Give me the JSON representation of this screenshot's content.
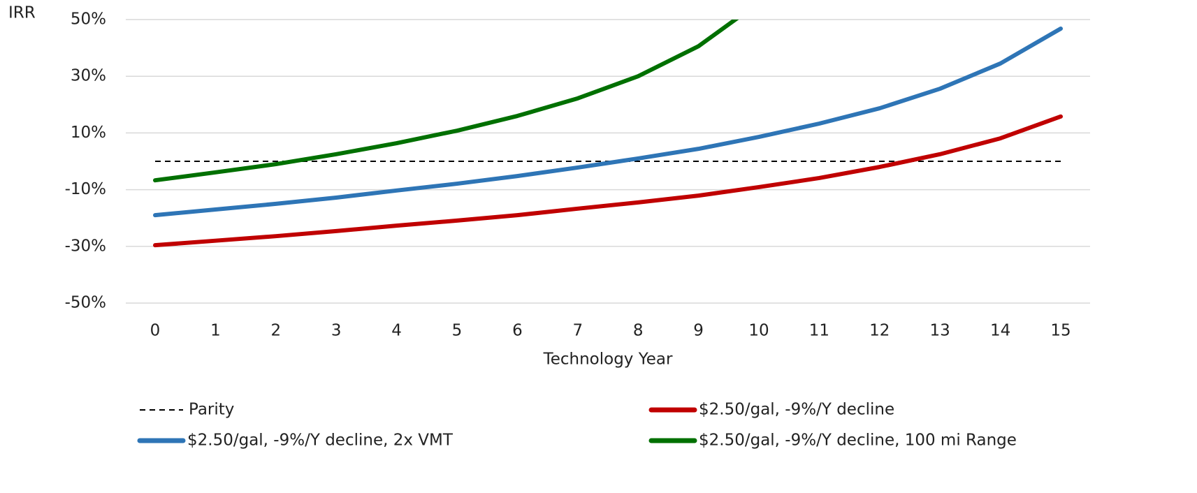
{
  "chart_data": {
    "type": "line",
    "y_label": "IRR",
    "x_label": "Technology Year",
    "categories": [
      0,
      1,
      2,
      3,
      4,
      5,
      6,
      7,
      8,
      9,
      10,
      11,
      12,
      13,
      14,
      15
    ],
    "ylim": [
      -50,
      50
    ],
    "yticks": [
      {
        "value": -50,
        "label": "-50%"
      },
      {
        "value": -30,
        "label": "-30%"
      },
      {
        "value": -10,
        "label": "-10%"
      },
      {
        "value": 10,
        "label": "10%"
      },
      {
        "value": 30,
        "label": "30%"
      },
      {
        "value": 50,
        "label": "50%"
      }
    ],
    "grid": true,
    "legend": "bottom",
    "series": [
      {
        "name": "Parity",
        "color": "#000000",
        "dashed": true,
        "values": [
          0,
          0,
          0,
          0,
          0,
          0,
          0,
          0,
          0,
          0,
          0,
          0,
          0,
          0,
          0,
          0
        ]
      },
      {
        "name": "$2.50/gal, -9%/Y decline",
        "color": "#c00000",
        "values": [
          -29.6,
          -28,
          -26.4,
          -24.6,
          -22.7,
          -20.9,
          -19,
          -16.7,
          -14.5,
          -12.1,
          -9.1,
          -5.9,
          -2,
          2.5,
          8.1,
          15.8
        ]
      },
      {
        "name": "$2.50/gal, -9%/Y decline, 2x VMT",
        "color": "#2e75b6",
        "values": [
          -19,
          -17,
          -15,
          -12.8,
          -10.3,
          -7.9,
          -5.2,
          -2.2,
          1,
          4.4,
          8.6,
          13.3,
          18.7,
          25.6,
          34.5,
          46.8
        ]
      },
      {
        "name": "$2.50/gal, -9%/Y decline, 100 mi Range",
        "color": "#007000",
        "values": [
          -6.7,
          -3.9,
          -1,
          2.5,
          6.4,
          10.8,
          16,
          22.2,
          30,
          40.6,
          56,
          null,
          null,
          null,
          null,
          null
        ]
      }
    ]
  }
}
